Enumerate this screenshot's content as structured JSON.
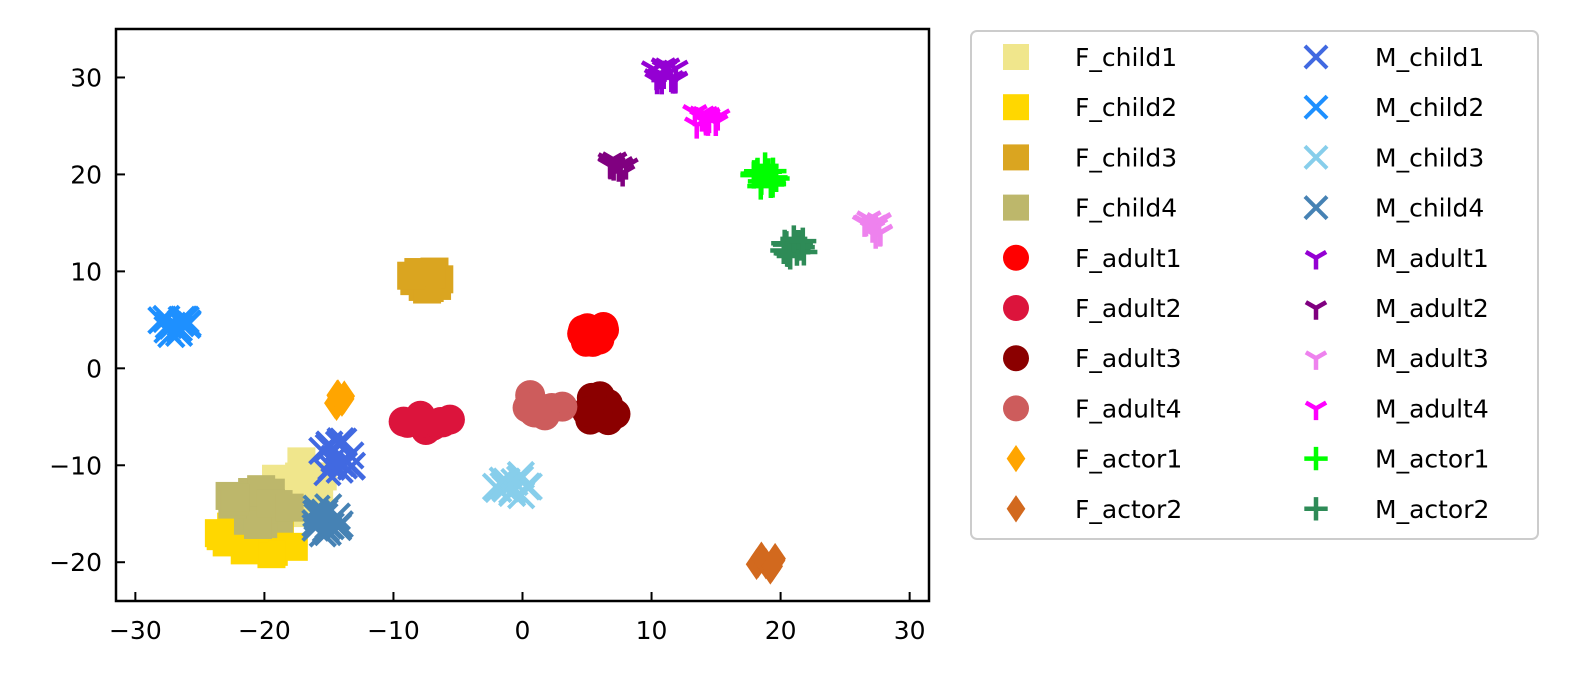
{
  "chart_data": {
    "type": "scatter",
    "xlabel": "",
    "ylabel": "",
    "xlim": [
      -31.5,
      31.5
    ],
    "ylim": [
      -24,
      35
    ],
    "xticks": [
      -30,
      -20,
      -10,
      0,
      10,
      20,
      30
    ],
    "yticks": [
      -20,
      -10,
      0,
      10,
      20,
      30
    ],
    "xtick_labels": [
      "−30",
      "−20",
      "−10",
      "0",
      "10",
      "20",
      "30"
    ],
    "ytick_labels": [
      "−20",
      "−10",
      "0",
      "10",
      "20",
      "30"
    ],
    "grid": false,
    "legend_position": "outside-right",
    "series": [
      {
        "name": "F_child1",
        "marker": "square",
        "color": "#f0e68c",
        "center": [
          -17,
          -12
        ],
        "spread": [
          2.5,
          3.5
        ],
        "count": 14
      },
      {
        "name": "F_child2",
        "marker": "square",
        "color": "#ffd700",
        "center": [
          -20.5,
          -17.5
        ],
        "spread": [
          3.5,
          1.8
        ],
        "count": 16
      },
      {
        "name": "F_child3",
        "marker": "square",
        "color": "#daa520",
        "center": [
          -7.5,
          9.5
        ],
        "spread": [
          1.4,
          1.4
        ],
        "count": 12
      },
      {
        "name": "F_child4",
        "marker": "square",
        "color": "#bdb76b",
        "center": [
          -20,
          -14
        ],
        "spread": [
          3.2,
          2.2
        ],
        "count": 16
      },
      {
        "name": "F_adult1",
        "marker": "circle",
        "color": "#ff0000",
        "center": [
          5.5,
          3.5
        ],
        "spread": [
          1.1,
          1.1
        ],
        "count": 10
      },
      {
        "name": "F_adult2",
        "marker": "circle",
        "color": "#dc143c",
        "center": [
          -7.5,
          -5.5
        ],
        "spread": [
          2,
          0.9
        ],
        "count": 12
      },
      {
        "name": "F_adult3",
        "marker": "circle",
        "color": "#8b0000",
        "center": [
          6,
          -4.2
        ],
        "spread": [
          1.3,
          1.4
        ],
        "count": 12
      },
      {
        "name": "F_adult4",
        "marker": "circle",
        "color": "#cd5c5c",
        "center": [
          1.5,
          -3.8
        ],
        "spread": [
          1.8,
          1.2
        ],
        "count": 12
      },
      {
        "name": "F_actor1",
        "marker": "diamond",
        "color": "#ffa500",
        "center": [
          -14.5,
          -3
        ],
        "spread": [
          0.9,
          1.8
        ],
        "count": 8
      },
      {
        "name": "F_actor2",
        "marker": "diamond",
        "color": "#d2691e",
        "center": [
          19,
          -20
        ],
        "spread": [
          0.9,
          0.9
        ],
        "count": 8
      },
      {
        "name": "M_child1",
        "marker": "x",
        "color": "#4169e1",
        "center": [
          -14,
          -9.5
        ],
        "spread": [
          1.8,
          2.2
        ],
        "count": 16
      },
      {
        "name": "M_child2",
        "marker": "x",
        "color": "#1e90ff",
        "center": [
          -27,
          4.3
        ],
        "spread": [
          1.3,
          1
        ],
        "count": 14
      },
      {
        "name": "M_child3",
        "marker": "x",
        "color": "#87ceeb",
        "center": [
          -0.8,
          -12
        ],
        "spread": [
          1.5,
          1.3
        ],
        "count": 14
      },
      {
        "name": "M_child4",
        "marker": "x",
        "color": "#4682b4",
        "center": [
          -15.5,
          -15.5
        ],
        "spread": [
          2,
          1.6
        ],
        "count": 16
      },
      {
        "name": "M_adult1",
        "marker": "tri",
        "color": "#9400d3",
        "center": [
          11.2,
          30.5
        ],
        "spread": [
          1.2,
          1.1
        ],
        "count": 14
      },
      {
        "name": "M_adult2",
        "marker": "tri",
        "color": "#800080",
        "center": [
          7.2,
          21
        ],
        "spread": [
          0.9,
          1.1
        ],
        "count": 12
      },
      {
        "name": "M_adult3",
        "marker": "tri",
        "color": "#ee82ee",
        "center": [
          27.2,
          14.5
        ],
        "spread": [
          0.9,
          1
        ],
        "count": 12
      },
      {
        "name": "M_adult4",
        "marker": "tri",
        "color": "#ff00ff",
        "center": [
          14,
          25.8
        ],
        "spread": [
          1.2,
          0.8
        ],
        "count": 14
      },
      {
        "name": "M_actor1",
        "marker": "plus",
        "color": "#00ff00",
        "center": [
          18.8,
          19.8
        ],
        "spread": [
          1,
          1.1
        ],
        "count": 14
      },
      {
        "name": "M_actor2",
        "marker": "plus",
        "color": "#2e8b57",
        "center": [
          21,
          12.5
        ],
        "spread": [
          1,
          1
        ],
        "count": 14
      }
    ]
  }
}
